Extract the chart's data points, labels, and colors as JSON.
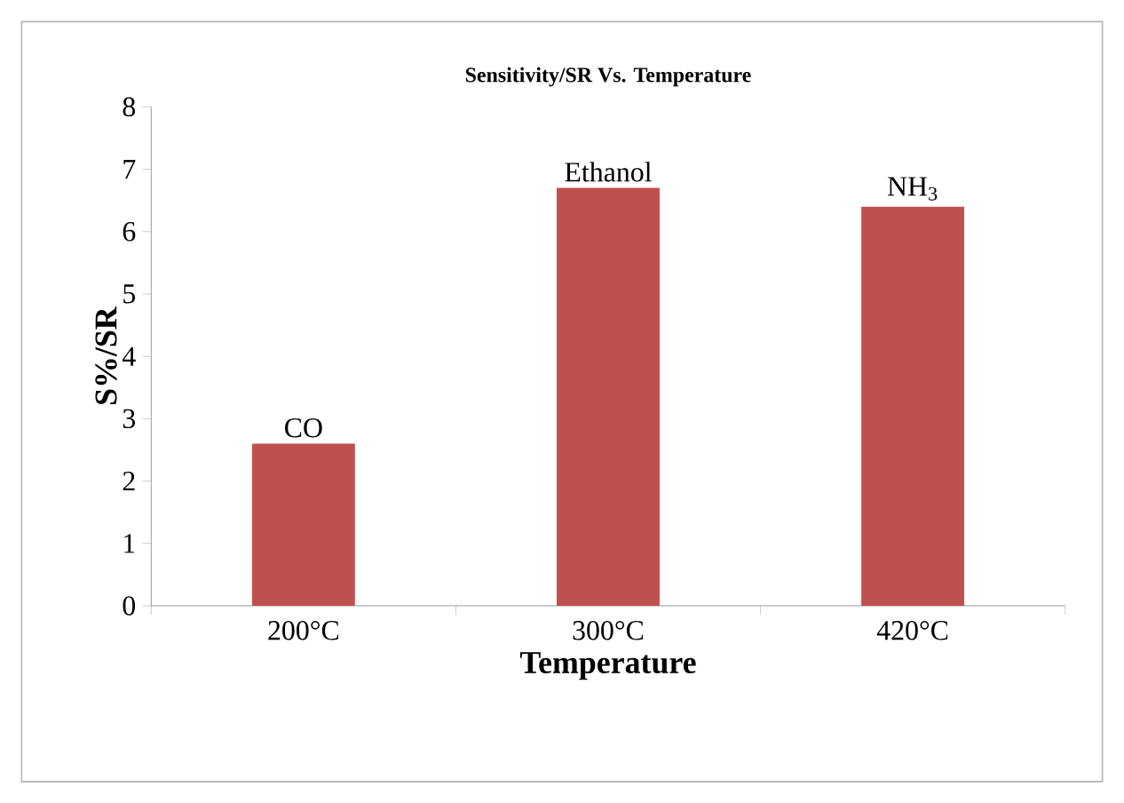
{
  "chart_data": {
    "type": "bar",
    "title": "Sensitivity/SR Vs. Temperature",
    "xlabel": "Temperature",
    "ylabel": "S%/SR",
    "categories": [
      "200°C",
      "300°C",
      "420°C"
    ],
    "values": [
      2.6,
      6.7,
      6.4
    ],
    "color": "#c0504d",
    "ylim": [
      0,
      8
    ],
    "yticks": [
      0,
      1,
      2,
      3,
      4,
      5,
      6,
      7,
      8
    ],
    "grid": false,
    "annotations": [
      {
        "text": "CO",
        "x": "200°C",
        "y": 2.6
      },
      {
        "text": "Ethanol",
        "x": "300°C",
        "y": 6.7
      },
      {
        "text": "NH$_{3}$",
        "x": "420°C",
        "y": 6.4
      }
    ]
  }
}
